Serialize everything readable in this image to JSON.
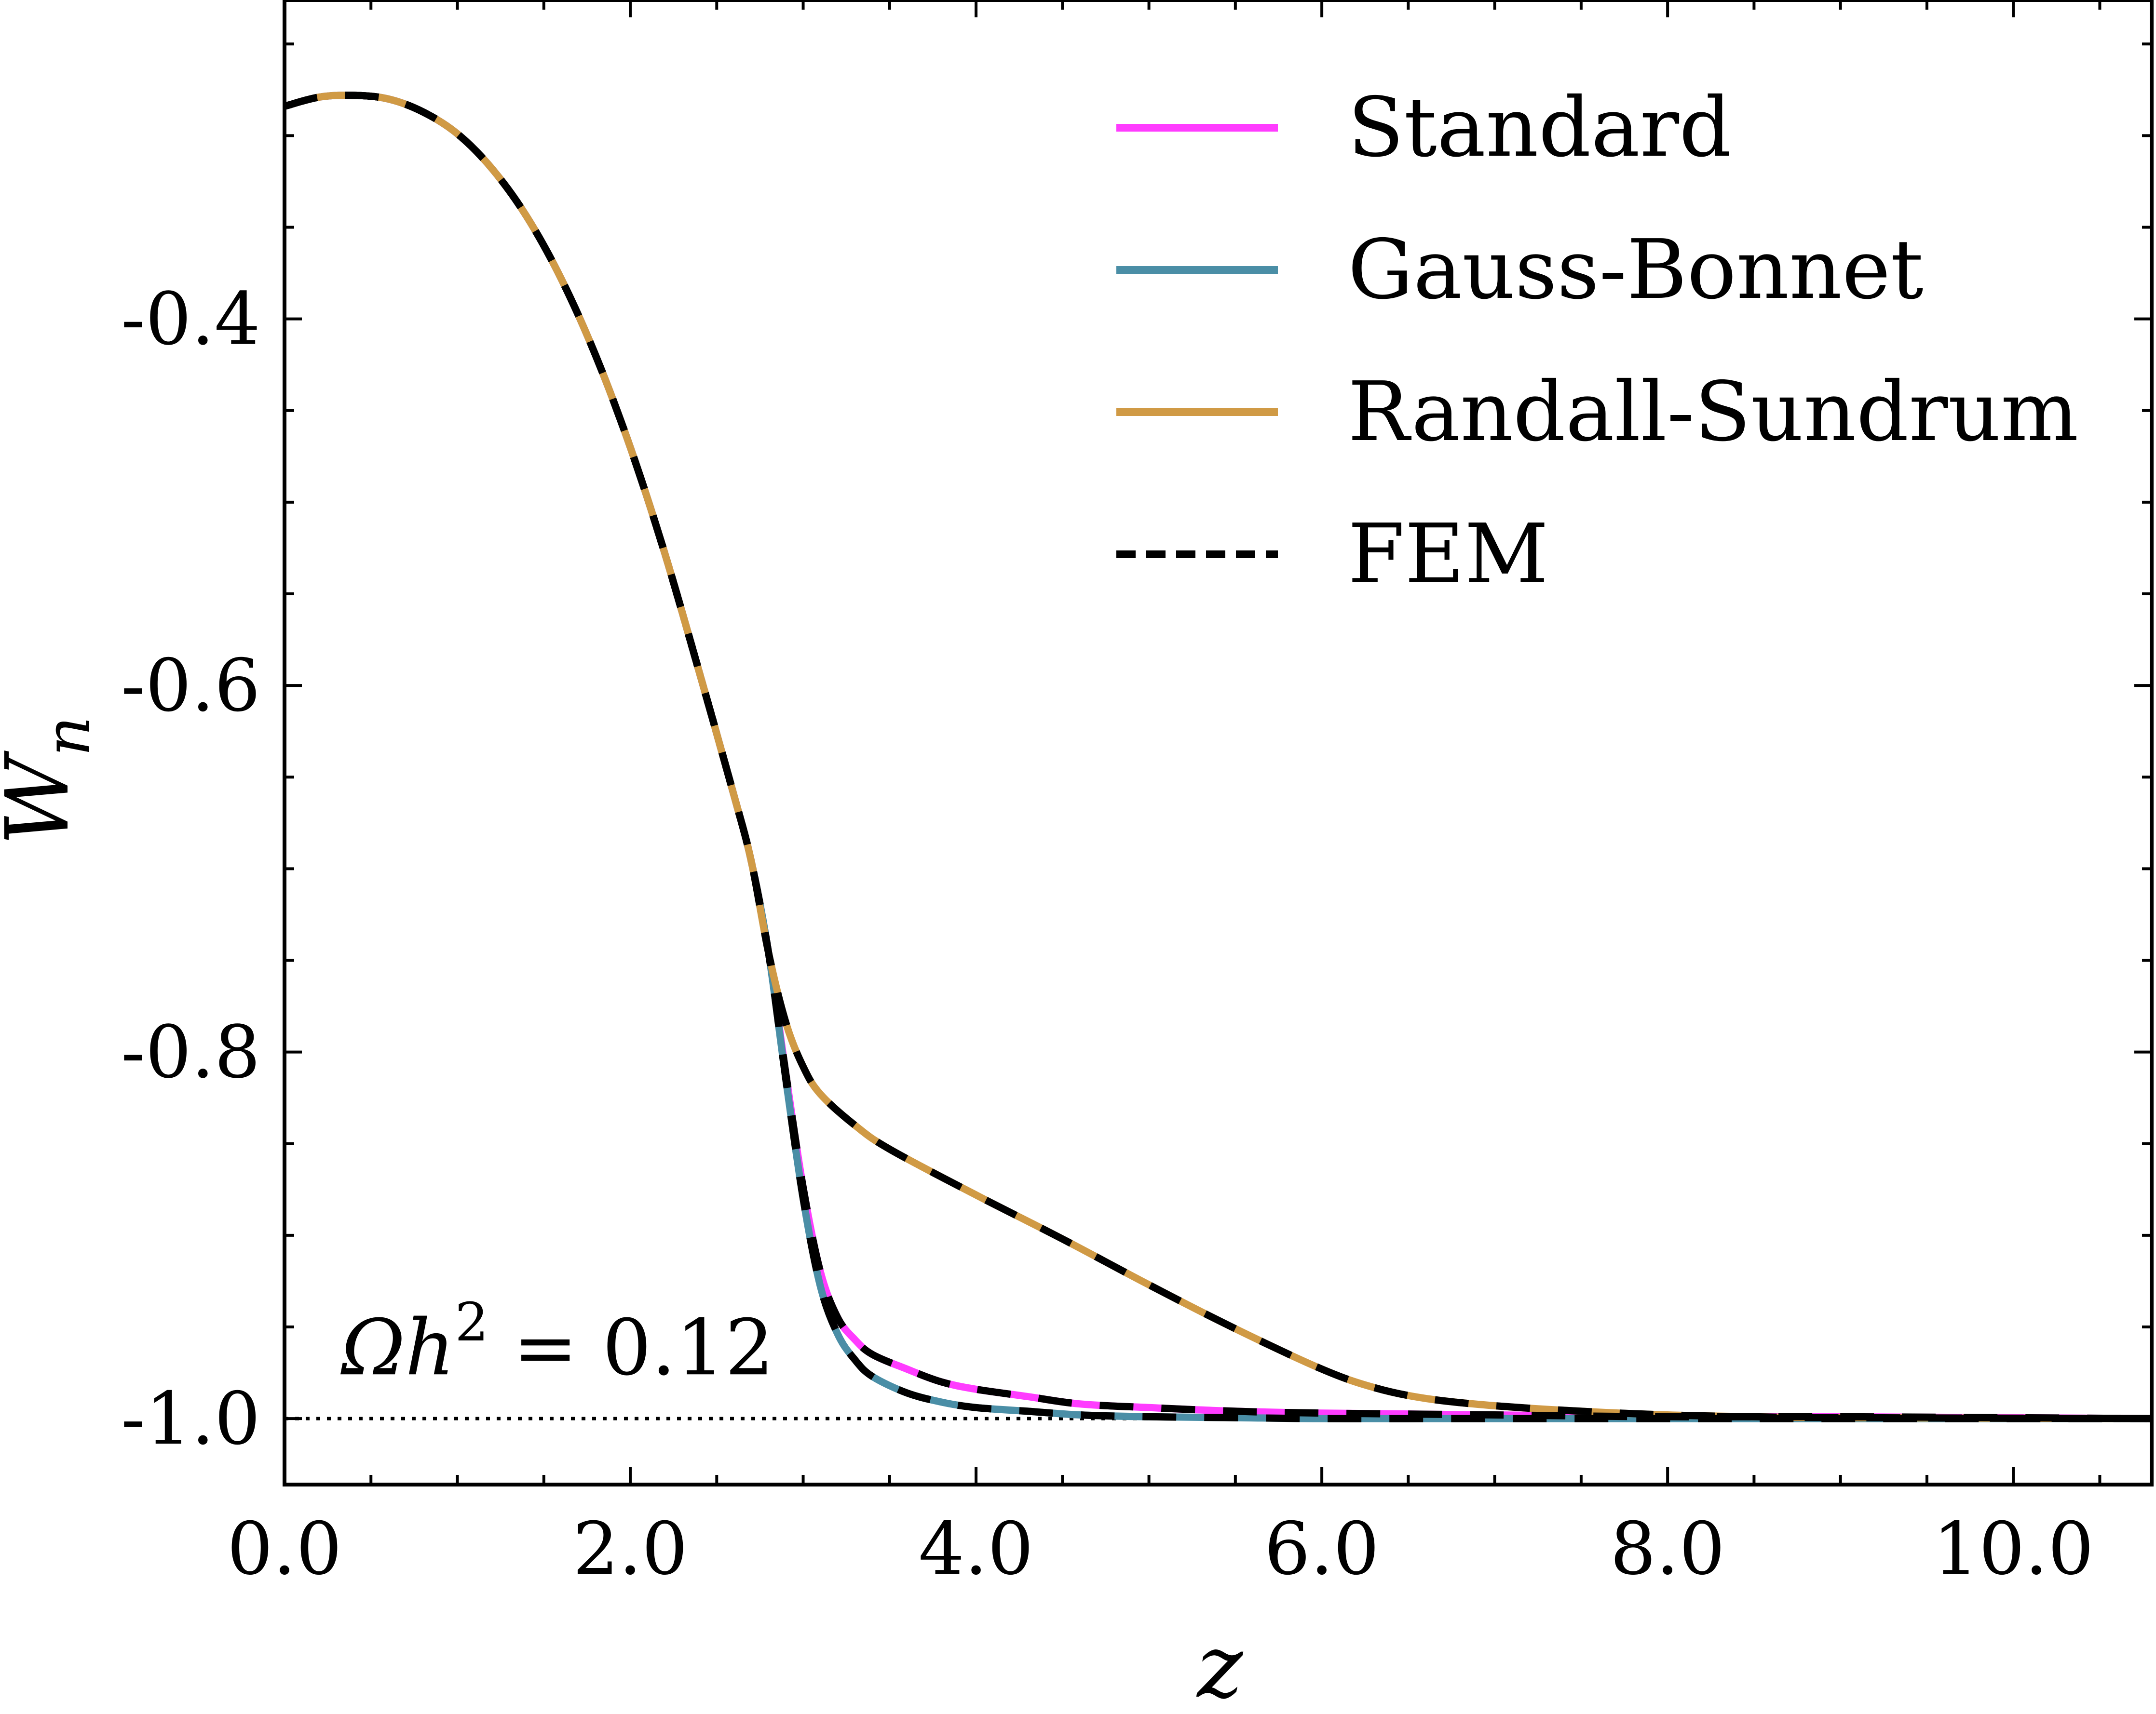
{
  "chart_data": {
    "type": "line",
    "title": "",
    "xlabel": "z",
    "ylabel": "W",
    "ylabel_sub": "n",
    "xlim": [
      0,
      10.8
    ],
    "ylim": [
      -1.036,
      -0.226
    ],
    "x_ticks": [
      0,
      2,
      4,
      6,
      8,
      10
    ],
    "x_tick_labels": [
      "0.0",
      "2.0",
      "4.0",
      "6.0",
      "8.0",
      "10.0"
    ],
    "x_minor_step": 0.5,
    "y_ticks": [
      -1.0,
      -0.8,
      -0.6,
      -0.4
    ],
    "y_tick_labels": [
      "-1.0",
      "-0.8",
      "-0.6",
      "-0.4"
    ],
    "y_minor_step": 0.05,
    "grid": false,
    "legend_position": "top-right",
    "series": [
      {
        "name": "Standard",
        "color": "#ff3cff",
        "style": "solid",
        "x": [
          0,
          0.2,
          0.4,
          0.6,
          0.8,
          1.0,
          1.2,
          1.4,
          1.6,
          1.8,
          2.0,
          2.2,
          2.4,
          2.6,
          2.7,
          2.8,
          2.9,
          3.0,
          3.1,
          3.2,
          3.3,
          3.4,
          3.6,
          3.8,
          4.0,
          4.3,
          4.6,
          5.0,
          5.5,
          6.0,
          7.0,
          8.0,
          9.0,
          10.8
        ],
        "values": [
          -0.284,
          -0.279,
          -0.278,
          -0.28,
          -0.287,
          -0.299,
          -0.318,
          -0.344,
          -0.378,
          -0.42,
          -0.47,
          -0.528,
          -0.593,
          -0.66,
          -0.696,
          -0.746,
          -0.812,
          -0.874,
          -0.92,
          -0.945,
          -0.957,
          -0.965,
          -0.973,
          -0.98,
          -0.984,
          -0.988,
          -0.992,
          -0.994,
          -0.996,
          -0.997,
          -0.998,
          -0.999,
          -0.999,
          -1.0
        ]
      },
      {
        "name": "Gauss-Bonnet",
        "color": "#4a8ea6",
        "style": "solid",
        "x": [
          0,
          0.2,
          0.4,
          0.6,
          0.8,
          1.0,
          1.2,
          1.4,
          1.6,
          1.8,
          2.0,
          2.2,
          2.4,
          2.6,
          2.7,
          2.8,
          2.9,
          3.0,
          3.1,
          3.2,
          3.3,
          3.4,
          3.6,
          3.8,
          4.0,
          4.3,
          4.6,
          5.0,
          5.5,
          6.0,
          7.0,
          8.0,
          9.0,
          10.8
        ],
        "values": [
          -0.284,
          -0.279,
          -0.278,
          -0.28,
          -0.287,
          -0.299,
          -0.318,
          -0.344,
          -0.378,
          -0.42,
          -0.47,
          -0.528,
          -0.593,
          -0.66,
          -0.696,
          -0.746,
          -0.815,
          -0.88,
          -0.928,
          -0.954,
          -0.968,
          -0.977,
          -0.986,
          -0.991,
          -0.994,
          -0.996,
          -0.998,
          -0.999,
          -0.9995,
          -1.0,
          -1.0,
          -1.0,
          -1.0,
          -1.0
        ]
      },
      {
        "name": "Randall-Sundrum",
        "color": "#d09a45",
        "style": "solid",
        "x": [
          0,
          0.2,
          0.4,
          0.6,
          0.8,
          1.0,
          1.2,
          1.4,
          1.6,
          1.8,
          2.0,
          2.2,
          2.4,
          2.6,
          2.7,
          2.8,
          2.9,
          3.0,
          3.1,
          3.3,
          3.5,
          4.0,
          4.5,
          5.0,
          5.5,
          6.0,
          6.3,
          6.6,
          7.0,
          7.5,
          8.0,
          8.5,
          9.0,
          10.8
        ],
        "values": [
          -0.284,
          -0.279,
          -0.278,
          -0.28,
          -0.287,
          -0.299,
          -0.318,
          -0.344,
          -0.378,
          -0.42,
          -0.47,
          -0.528,
          -0.593,
          -0.66,
          -0.696,
          -0.746,
          -0.784,
          -0.808,
          -0.823,
          -0.84,
          -0.853,
          -0.878,
          -0.902,
          -0.927,
          -0.951,
          -0.973,
          -0.983,
          -0.989,
          -0.993,
          -0.996,
          -0.998,
          -0.999,
          -0.9995,
          -1.0
        ]
      },
      {
        "name": "FEM",
        "color": "#000000",
        "style": "dashed",
        "overlays": [
          "Standard",
          "Gauss-Bonnet",
          "Randall-Sundrum"
        ]
      }
    ],
    "reference_line": {
      "y": -1.0,
      "style": "dotted",
      "x_start": 0,
      "x_end": 6.0
    },
    "annotations": [
      {
        "text_pre": "Ωh",
        "sup": "2",
        "text_post": " = 0.12",
        "x": 0.3,
        "y": -0.964
      }
    ]
  }
}
